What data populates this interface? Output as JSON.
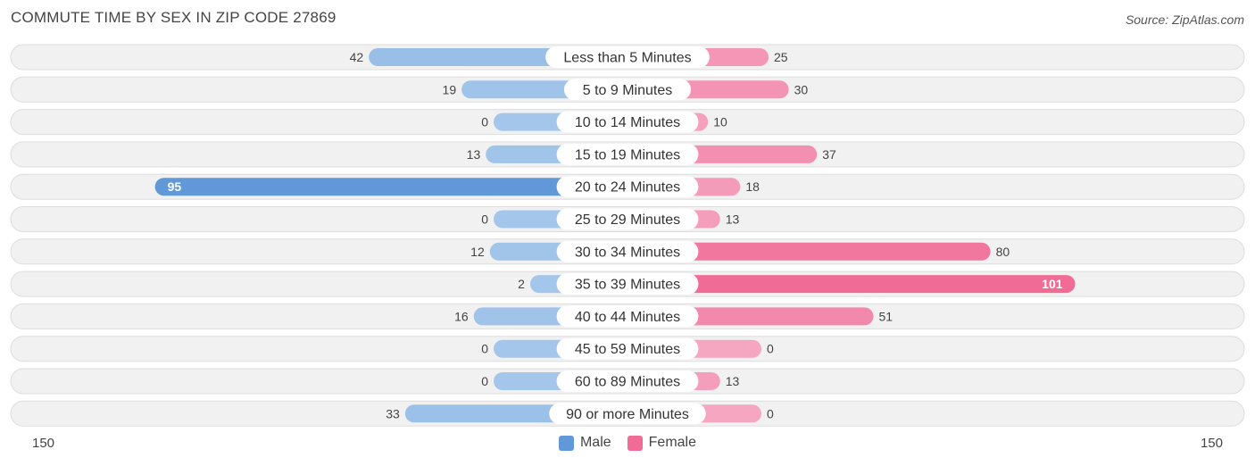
{
  "title": "COMMUTE TIME BY SEX IN ZIP CODE 27869",
  "source": "Source: ZipAtlas.com",
  "legend": {
    "male": "Male",
    "female": "Female"
  },
  "axis": {
    "left_label": "150",
    "right_label": "150"
  },
  "colors": {
    "male_light": "#a4c6ea",
    "male_dark": "#6199d8",
    "female_light": "#f5a6c0",
    "female_dark": "#f06b96",
    "row_bg": "#f1f1f1",
    "row_border": "#dddddd"
  },
  "chart_data": {
    "type": "bar",
    "orientation": "horizontal-diverging",
    "max": 150,
    "categories": [
      "Less than 5 Minutes",
      "5 to 9 Minutes",
      "10 to 14 Minutes",
      "15 to 19 Minutes",
      "20 to 24 Minutes",
      "25 to 29 Minutes",
      "30 to 34 Minutes",
      "35 to 39 Minutes",
      "40 to 44 Minutes",
      "45 to 59 Minutes",
      "60 to 89 Minutes",
      "90 or more Minutes"
    ],
    "series": [
      {
        "name": "Male",
        "values": [
          42,
          19,
          0,
          13,
          95,
          0,
          12,
          2,
          16,
          0,
          0,
          33
        ]
      },
      {
        "name": "Female",
        "values": [
          25,
          30,
          10,
          37,
          18,
          13,
          80,
          101,
          51,
          0,
          13,
          0
        ]
      }
    ]
  }
}
